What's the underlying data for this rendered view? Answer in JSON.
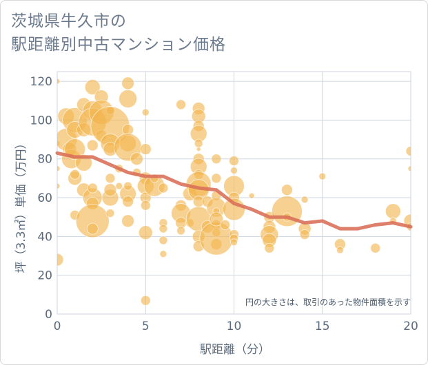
{
  "title": {
    "line1": "茨城県牛久市の",
    "line2": "駅距離別中古マンション価格"
  },
  "colors": {
    "bubble": "#f2b44f",
    "line": "#d9715a",
    "grid": "#ccd6e0",
    "text": "#5b6b7e"
  },
  "chart_data": {
    "type": "scatter",
    "xlabel": "駅距離（分）",
    "ylabel": "坪（3.3㎡）単価（万円）",
    "xlim": [
      0,
      20
    ],
    "ylim": [
      0,
      125
    ],
    "xticks": [
      0,
      5,
      10,
      15,
      20
    ],
    "yticks": [
      0,
      20,
      40,
      60,
      80,
      100,
      120
    ],
    "note": "円の大きさは、取引のあった物件面積を示す",
    "series": [
      {
        "type": "bubble",
        "points": [
          [
            0,
            28,
            9
          ],
          [
            0,
            120,
            4
          ],
          [
            0,
            88,
            4
          ],
          [
            0,
            66,
            4
          ],
          [
            0,
            75,
            4
          ],
          [
            0.5,
            90,
            16
          ],
          [
            0.5,
            102,
            12
          ],
          [
            0.7,
            85,
            10
          ],
          [
            0.8,
            80,
            14
          ],
          [
            1,
            100,
            18
          ],
          [
            1,
            85,
            15
          ],
          [
            1,
            95,
            12
          ],
          [
            1,
            70,
            10
          ],
          [
            1,
            72,
            7
          ],
          [
            1,
            51,
            7
          ],
          [
            1.5,
            108,
            10
          ],
          [
            1.5,
            95,
            10
          ],
          [
            1.5,
            78,
            12
          ],
          [
            1.5,
            64,
            10
          ],
          [
            2,
            117,
            11
          ],
          [
            2,
            105,
            14
          ],
          [
            2,
            99,
            20
          ],
          [
            2,
            87,
            8
          ],
          [
            2,
            60,
            14
          ],
          [
            2,
            57,
            9
          ],
          [
            2,
            48,
            24
          ],
          [
            2,
            44,
            8
          ],
          [
            2,
            65,
            7
          ],
          [
            2.5,
            112,
            10
          ],
          [
            2.5,
            92,
            8
          ],
          [
            2.5,
            104,
            18
          ],
          [
            3,
            105,
            6
          ],
          [
            3,
            97,
            28
          ],
          [
            3,
            88,
            14
          ],
          [
            3,
            85,
            10
          ],
          [
            3,
            70,
            7
          ],
          [
            3,
            60,
            12
          ],
          [
            3,
            64,
            9
          ],
          [
            3,
            52,
            6
          ],
          [
            3.5,
            75,
            6
          ],
          [
            3.5,
            66,
            5
          ],
          [
            4,
            119,
            9
          ],
          [
            4,
            111,
            13
          ],
          [
            4,
            95,
            8
          ],
          [
            4,
            88,
            12
          ],
          [
            4,
            86,
            20
          ],
          [
            4,
            62,
            12
          ],
          [
            4,
            58,
            8
          ],
          [
            4,
            48,
            9
          ],
          [
            4,
            66,
            6
          ],
          [
            4.5,
            80,
            9
          ],
          [
            4.5,
            73,
            6
          ],
          [
            5,
            104,
            5
          ],
          [
            5,
            85,
            8
          ],
          [
            5,
            70,
            9
          ],
          [
            5,
            66,
            12
          ],
          [
            5,
            60,
            8
          ],
          [
            5,
            56,
            7
          ],
          [
            5,
            42,
            10
          ],
          [
            5,
            7,
            7
          ],
          [
            5.5,
            66,
            15
          ],
          [
            5.5,
            70,
            6
          ],
          [
            6,
            65,
            7
          ],
          [
            6,
            47,
            6
          ],
          [
            6,
            44,
            6
          ],
          [
            6,
            38,
            6
          ],
          [
            6,
            31,
            5
          ],
          [
            7,
            108,
            7
          ],
          [
            7,
            56,
            8
          ],
          [
            7,
            52,
            14
          ],
          [
            7,
            47,
            8
          ],
          [
            7,
            43,
            6
          ],
          [
            7.5,
            62,
            10
          ],
          [
            7.5,
            47,
            6
          ],
          [
            8,
            106,
            9
          ],
          [
            8,
            102,
            10
          ],
          [
            8,
            97,
            8
          ],
          [
            8,
            93,
            12
          ],
          [
            8,
            88,
            6
          ],
          [
            8,
            85,
            3
          ],
          [
            8,
            80,
            8
          ],
          [
            8,
            76,
            12
          ],
          [
            8,
            72,
            7
          ],
          [
            8,
            67,
            18
          ],
          [
            8,
            64,
            15
          ],
          [
            8,
            58,
            8
          ],
          [
            8,
            49,
            18
          ],
          [
            8,
            40,
            9
          ],
          [
            8,
            35,
            8
          ],
          [
            8.5,
            58,
            8
          ],
          [
            8.5,
            45,
            9
          ],
          [
            9,
            80,
            7
          ],
          [
            9,
            70,
            7
          ],
          [
            9,
            61,
            7
          ],
          [
            9,
            55,
            14
          ],
          [
            9,
            46,
            7
          ],
          [
            9,
            42,
            6
          ],
          [
            9,
            36,
            8
          ],
          [
            9,
            39,
            24
          ],
          [
            9,
            53,
            5
          ],
          [
            9,
            49,
            10
          ],
          [
            9.5,
            46,
            7
          ],
          [
            10,
            79,
            7
          ],
          [
            10,
            74,
            5
          ],
          [
            10,
            66,
            15
          ],
          [
            10,
            60,
            8
          ],
          [
            10,
            54,
            16
          ],
          [
            10,
            41,
            7
          ],
          [
            10,
            39,
            6
          ],
          [
            10,
            37,
            5
          ],
          [
            11,
            61,
            4
          ],
          [
            12,
            50,
            8
          ],
          [
            12,
            45,
            9
          ],
          [
            12,
            41,
            13
          ],
          [
            12,
            38,
            10
          ],
          [
            12,
            34,
            7
          ],
          [
            13,
            64,
            8
          ],
          [
            13,
            53,
            22
          ],
          [
            13,
            50,
            6
          ],
          [
            14,
            59,
            5
          ],
          [
            14,
            44,
            9
          ],
          [
            14,
            41,
            7
          ],
          [
            15,
            71,
            5
          ],
          [
            16,
            36,
            8
          ],
          [
            16,
            33,
            5
          ],
          [
            18,
            34,
            7
          ],
          [
            19,
            53,
            11
          ],
          [
            19,
            48,
            5
          ],
          [
            20,
            84,
            7
          ],
          [
            20,
            75,
            4
          ],
          [
            20,
            48,
            10
          ],
          [
            20,
            45,
            6
          ]
        ]
      },
      {
        "type": "line",
        "x": [
          0,
          1,
          2,
          3,
          4,
          5,
          6,
          7,
          8,
          9,
          10,
          11,
          12,
          13,
          14,
          15,
          16,
          17,
          18,
          19,
          20
        ],
        "y": [
          83,
          81,
          81,
          77,
          73,
          71,
          71,
          67,
          65,
          64,
          57,
          54,
          50,
          50,
          47,
          48,
          44,
          44,
          46,
          47,
          45
        ]
      }
    ]
  }
}
